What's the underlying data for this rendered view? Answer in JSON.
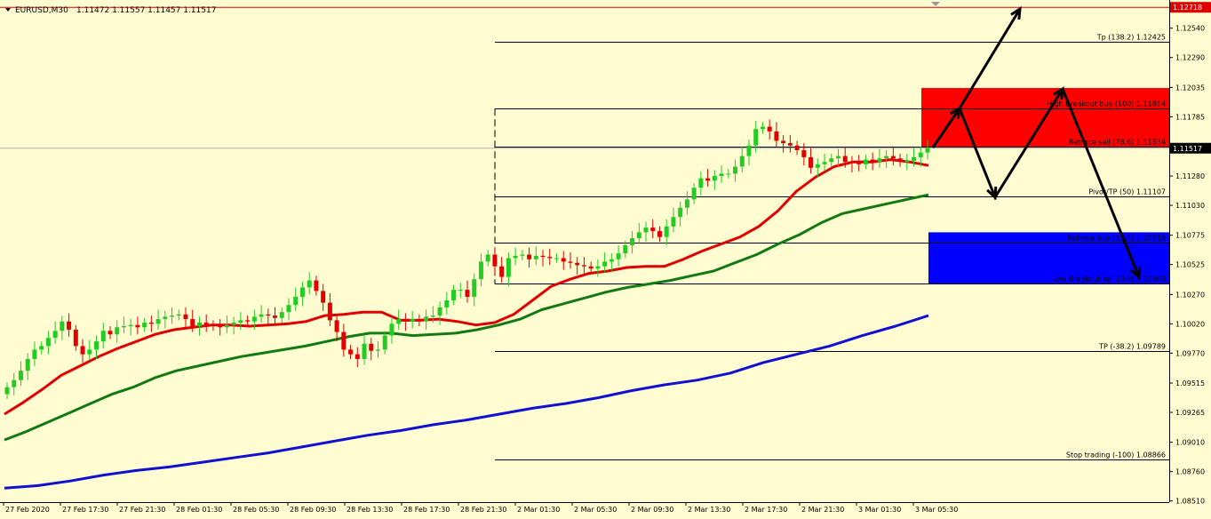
{
  "header": {
    "symbol": "EURUSD,M30",
    "ohlc": "1.11472 1.11557 1.11457 1.11517"
  },
  "chart_data": {
    "type": "candlestick",
    "symbol": "EURUSD",
    "timeframe": "M30",
    "ylim": [
      1.085,
      1.1275
    ],
    "y_ticks": [
      "1.12540",
      "1.12290",
      "1.12035",
      "1.11785",
      "1.11530",
      "1.11280",
      "1.11030",
      "1.10775",
      "1.10525",
      "1.10270",
      "1.10020",
      "1.09770",
      "1.09515",
      "1.09265",
      "1.09010",
      "1.08760",
      "1.08510"
    ],
    "x_ticks": [
      "27 Feb 2020",
      "27 Feb 17:30",
      "27 Feb 21:30",
      "28 Feb 01:30",
      "28 Feb 05:30",
      "28 Feb 09:30",
      "28 Feb 13:30",
      "28 Feb 17:30",
      "28 Feb 21:30",
      "2 Mar 01:30",
      "2 Mar 05:30",
      "2 Mar 09:30",
      "2 Mar 13:30",
      "2 Mar 17:30",
      "2 Mar 21:30",
      "3 Mar 01:30",
      "3 Mar 05:30"
    ],
    "current_price": "1.11517",
    "top_marker_price": "1.12718",
    "candles_close": [
      1.0948,
      1.0954,
      1.0962,
      1.0972,
      1.098,
      1.0983,
      1.099,
      1.0996,
      1.1004,
      1.0997,
      1.0983,
      1.0976,
      1.098,
      1.0987,
      1.0996,
      1.0993,
      1.0999,
      1.1,
      1.1001,
      1.0999,
      1.1003,
      1.1002,
      1.1006,
      1.1008,
      1.1009,
      1.101,
      1.1006,
      1.1,
      1.1003,
      1.1001,
      1.1,
      1.0999,
      1.1001,
      1.1003,
      1.1005,
      1.1004,
      1.1008,
      1.101,
      1.1009,
      1.1007,
      1.1012,
      1.1018,
      1.1025,
      1.1033,
      1.1039,
      1.103,
      1.102,
      1.1005,
      1.0995,
      1.098,
      1.0976,
      1.0972,
      1.0985,
      1.0979,
      1.098,
      1.0992,
      1.1002,
      1.1006,
      1.1004,
      1.1006,
      1.1004,
      1.1008,
      1.1009,
      1.1016,
      1.1022,
      1.1031,
      1.1031,
      1.1025,
      1.104,
      1.1055,
      1.1061,
      1.1051,
      1.1042,
      1.1058,
      1.106,
      1.1061,
      1.1057,
      1.106,
      1.1059,
      1.1058,
      1.1058,
      1.1055,
      1.1054,
      1.1052,
      1.1051,
      1.1049,
      1.1051,
      1.1055,
      1.1057,
      1.1062,
      1.1069,
      1.1075,
      1.108,
      1.1084,
      1.1081,
      1.1076,
      1.1085,
      1.1093,
      1.1101,
      1.1108,
      1.1118,
      1.1126,
      1.1124,
      1.1128,
      1.113,
      1.113,
      1.1136,
      1.1145,
      1.1154,
      1.1168,
      1.117,
      1.1166,
      1.1158,
      1.1156,
      1.1154,
      1.115,
      1.1144,
      1.1135,
      1.1138,
      1.114,
      1.1143,
      1.1145,
      1.114,
      1.1139,
      1.1138,
      1.1142,
      1.114,
      1.1143,
      1.1145,
      1.1143,
      1.114,
      1.1141,
      1.1144,
      1.1148,
      1.1152
    ],
    "series": [
      {
        "name": "",
        "color": "#E00000",
        "values": [
          1.0925,
          1.0935,
          1.0946,
          1.0958,
          1.0966,
          1.0974,
          1.0981,
          1.0987,
          1.0993,
          1.0997,
          1.0999,
          1.1001,
          1.1001,
          1.1,
          1.1001,
          1.1002,
          1.1004,
          1.1009,
          1.101,
          1.1012,
          1.1012,
          1.1005,
          1.1005,
          1.1006,
          1.1004,
          1.1001,
          1.1003,
          1.101,
          1.1022,
          1.1034,
          1.104,
          1.1045,
          1.1047,
          1.105,
          1.1051,
          1.1051,
          1.1057,
          1.1064,
          1.107,
          1.1076,
          1.1085,
          1.1098,
          1.1115,
          1.1127,
          1.1136,
          1.114,
          1.114,
          1.1142,
          1.114,
          1.1137
        ]
      },
      {
        "name": "",
        "color": "#137A13",
        "values": [
          1.0903,
          1.091,
          1.0918,
          1.0926,
          1.0934,
          1.0942,
          1.0948,
          1.0956,
          1.0962,
          1.0966,
          1.097,
          1.0974,
          1.0977,
          1.098,
          1.0983,
          1.0987,
          1.0991,
          1.0994,
          1.0994,
          1.0992,
          1.0993,
          1.0994,
          1.0997,
          1.1001,
          1.1006,
          1.1014,
          1.1019,
          1.1024,
          1.1029,
          1.1033,
          1.1036,
          1.1039,
          1.1043,
          1.1047,
          1.1054,
          1.1061,
          1.107,
          1.1078,
          1.1088,
          1.1096,
          1.11,
          1.1104,
          1.1108,
          1.1112
        ]
      },
      {
        "name": "",
        "color": "#1010D0",
        "values": [
          1.0862,
          1.0864,
          1.0868,
          1.0873,
          1.0877,
          1.088,
          1.0884,
          1.0888,
          1.0892,
          1.0897,
          1.0902,
          1.0907,
          1.0911,
          1.0916,
          1.092,
          1.0925,
          1.093,
          1.0934,
          1.0939,
          1.0945,
          1.095,
          1.0954,
          1.096,
          1.0969,
          1.0976,
          1.0983,
          1.0992,
          1.1,
          1.1009
        ]
      }
    ],
    "fibonacci_levels": [
      {
        "label": "Tp (138.2)",
        "price": "1.12425",
        "value": 1.12425
      },
      {
        "label": "High Breakout buy (100)",
        "price": "1.11854",
        "value": 1.11854
      },
      {
        "label": "Retrace sell (78.6)",
        "price": "1.11534",
        "value": 1.11534
      },
      {
        "label": "Pivot/TP (50)",
        "price": "1.11107",
        "value": 1.11107
      },
      {
        "label": "Retrace buy (21.4)",
        "price": "1.10710",
        "value": 1.1071
      },
      {
        "label": "Low Breakout sell (0.0)",
        "price": "1.10360",
        "value": 1.1036
      },
      {
        "label": "TP (-38.2)",
        "price": "1.09789",
        "value": 1.09789
      },
      {
        "label": "Stop trading (-100)",
        "price": "1.08866",
        "value": 1.08866
      }
    ],
    "zones": [
      {
        "color": "#FF0000",
        "top": 1.1203,
        "bottom": 1.1153
      },
      {
        "color": "#0000FF",
        "top": 1.108,
        "bottom": 1.1036
      }
    ],
    "colors": {
      "background": "#FFFCD2",
      "bull": "#22CC22",
      "bear": "#E00000",
      "fib": "#000000",
      "current_line": "#B0B0B0",
      "top_line": "#E00000"
    }
  }
}
